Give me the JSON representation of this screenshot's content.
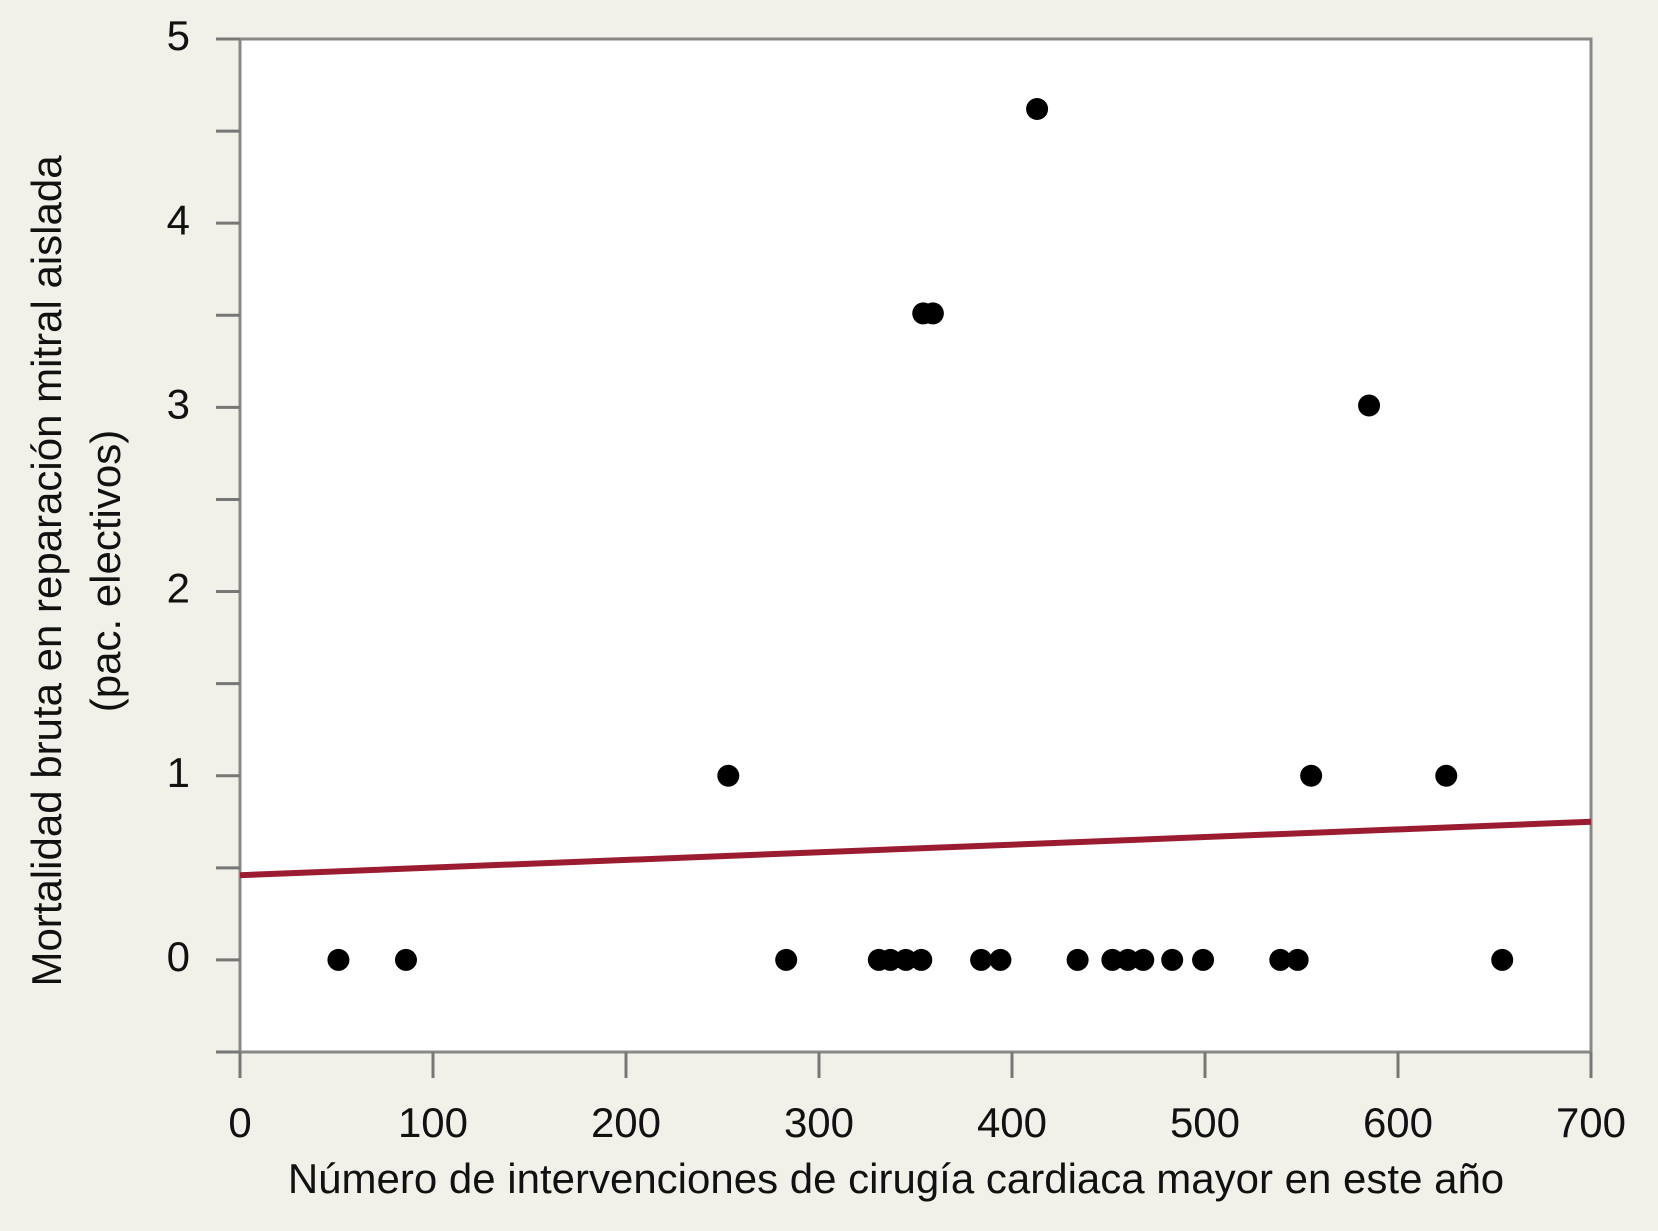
{
  "chart_data": {
    "type": "scatter",
    "xlabel": "Número de intervenciones de cirugía cardiaca mayor en este año",
    "ylabel": [
      "Mortalidad bruta en reparación mitral aislada",
      "(pac. electivos)"
    ],
    "x": [
      51,
      86,
      253,
      283,
      331,
      337,
      345,
      353,
      354,
      359,
      384,
      394,
      413,
      434,
      452,
      460,
      468,
      483,
      499,
      539,
      548,
      555,
      585,
      625,
      654
    ],
    "series": [
      {
        "color": "#000000",
        "values": [
          0,
          0,
          1.0,
          0,
          0,
          0,
          0,
          0,
          3.51,
          3.51,
          0,
          0,
          4.62,
          0,
          0,
          0,
          0,
          0,
          0,
          0,
          0,
          1.0,
          3.01,
          1.0,
          0
        ]
      }
    ],
    "trend_line": {
      "x": [
        0,
        700
      ],
      "y": [
        0.46,
        0.75
      ],
      "color": "#9b1b30"
    },
    "xlim": [
      0,
      700
    ],
    "xticks": [
      0,
      100,
      200,
      300,
      400,
      500,
      600,
      700
    ],
    "ylim": [
      -0.5,
      5
    ],
    "yticks": [
      0,
      1,
      2,
      3,
      4,
      5
    ],
    "yminor_ticks": [
      -0.5,
      0.5,
      1.5,
      2.5,
      3.5,
      4.5
    ]
  }
}
